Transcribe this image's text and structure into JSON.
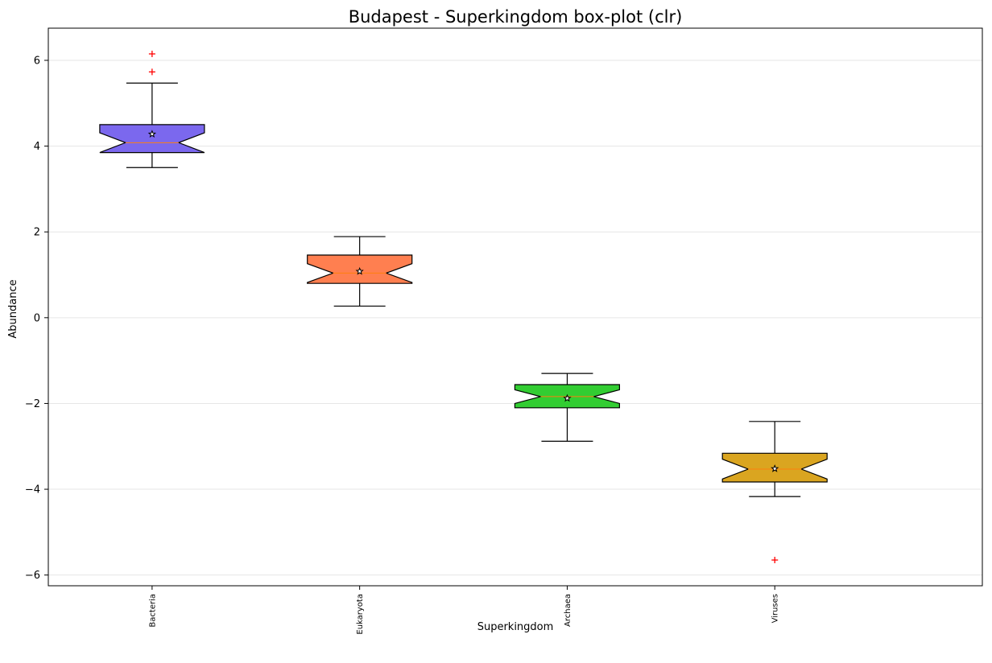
{
  "chart_data": {
    "type": "boxplot",
    "title": "Budapest - Superkingdom box-plot (clr)",
    "xlabel": "Superkingdom",
    "ylabel": "Abundance",
    "ylim": [
      -6.25,
      6.75
    ],
    "yticks": [
      6,
      4,
      2,
      0,
      -2,
      -4,
      -6
    ],
    "ytick_labels": [
      "6",
      "4",
      "2",
      "0",
      "−2",
      "−4",
      "−6"
    ],
    "grid": "horizontal",
    "notched": true,
    "categories": [
      "Bacteria",
      "Eukaryota",
      "Archaea",
      "Viruses"
    ],
    "boxes": [
      {
        "name": "Bacteria",
        "color": "#7B68EE",
        "whisker_low": 3.5,
        "q1": 3.85,
        "median": 4.08,
        "q3": 4.5,
        "whisker_high": 5.47,
        "mean": 4.28,
        "notch_low": 3.85,
        "notch_high": 4.31,
        "fliers": [
          5.73,
          6.15
        ]
      },
      {
        "name": "Eukaryota",
        "color": "#FF7F50",
        "whisker_low": 0.27,
        "q1": 0.8,
        "median": 1.04,
        "q3": 1.46,
        "whisker_high": 1.89,
        "mean": 1.08,
        "notch_low": 0.82,
        "notch_high": 1.26,
        "fliers": []
      },
      {
        "name": "Archaea",
        "color": "#32CD32",
        "whisker_low": -2.88,
        "q1": -2.1,
        "median": -1.84,
        "q3": -1.56,
        "whisker_high": -1.3,
        "mean": -1.88,
        "notch_low": -2.0,
        "notch_high": -1.68,
        "fliers": []
      },
      {
        "name": "Viruses",
        "color": "#DAA520",
        "whisker_low": -4.17,
        "q1": -3.83,
        "median": -3.53,
        "q3": -3.16,
        "whisker_high": -2.42,
        "mean": -3.52,
        "notch_low": -3.76,
        "notch_high": -3.3,
        "fliers": [
          -5.65
        ]
      }
    ]
  }
}
